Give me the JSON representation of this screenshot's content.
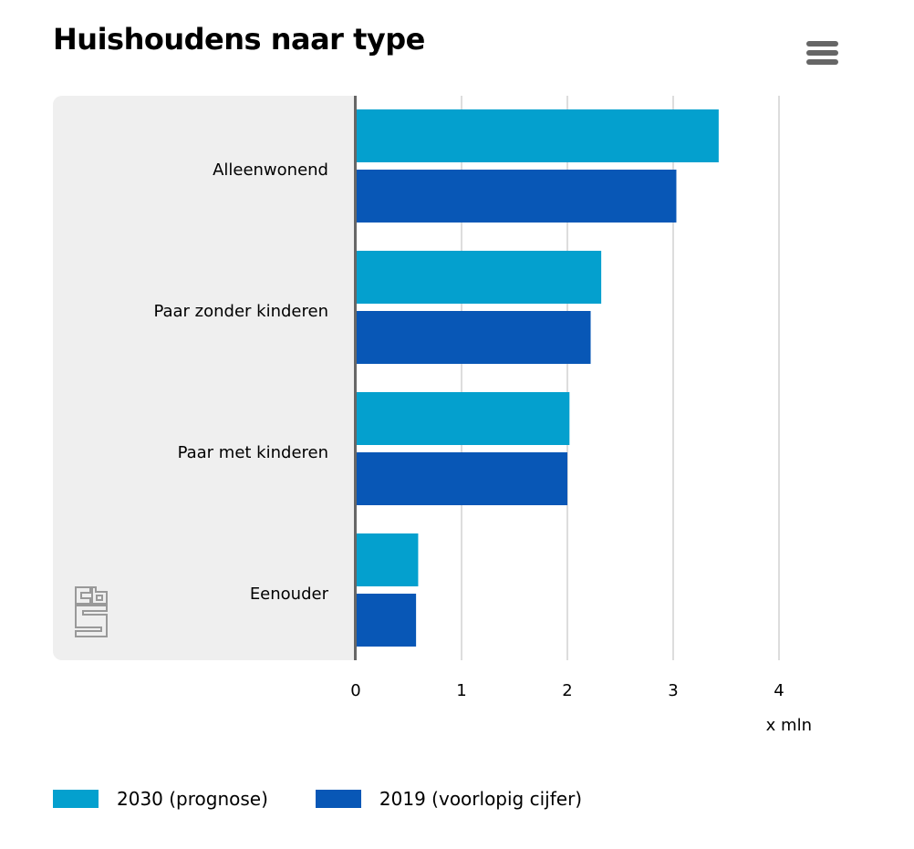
{
  "title": "Huishoudens naar type",
  "chart_data": {
    "type": "bar",
    "orientation": "horizontal",
    "title": "Huishoudens naar type",
    "categories": [
      "Alleenwonend",
      "Paar zonder kinderen",
      "Paar met kinderen",
      "Eenouder"
    ],
    "series": [
      {
        "name": "2030 (prognose)",
        "color": "#04a0ce",
        "values": [
          3.43,
          2.32,
          2.02,
          0.59
        ]
      },
      {
        "name": "2019 (voorlopig cijfer)",
        "color": "#0857b6",
        "values": [
          3.03,
          2.22,
          2.0,
          0.57
        ]
      }
    ],
    "xlabel": "x mln",
    "xlim": [
      0,
      4
    ],
    "xticks": [
      "0",
      "1",
      "2",
      "3",
      "4"
    ],
    "grid": true,
    "legend": "bottom"
  },
  "logo": "cbs"
}
